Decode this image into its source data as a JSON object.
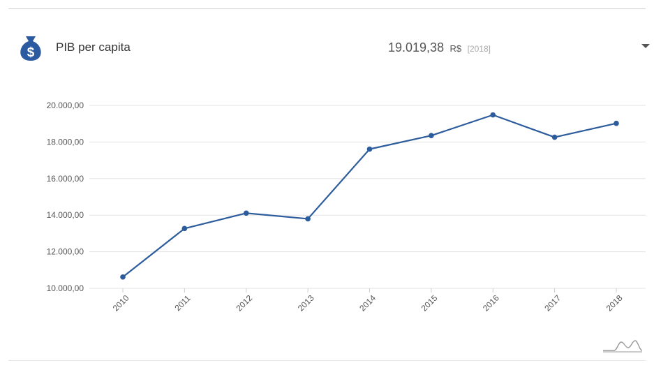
{
  "header": {
    "title": "PIB per capita",
    "value": "19.019,38",
    "unit": "R$",
    "year": "[2018]",
    "icon": "money-bag-icon"
  },
  "colors": {
    "accent": "#2c5c9c",
    "grid": "#e3e3e3",
    "text": "#555555"
  },
  "chart_data": {
    "type": "line",
    "title": "",
    "xlabel": "",
    "ylabel": "",
    "categories": [
      "2010",
      "2011",
      "2012",
      "2013",
      "2014",
      "2015",
      "2016",
      "2017",
      "2018"
    ],
    "series": [
      {
        "values": [
          10620,
          13270,
          14110,
          13800,
          17610,
          18350,
          19480,
          18260,
          19019.38
        ]
      }
    ],
    "ylim": [
      10000,
      20000
    ],
    "yticks": [
      "10.000,00",
      "12.000,00",
      "14.000,00",
      "16.000,00",
      "18.000,00",
      "20.000,00"
    ],
    "grid": true,
    "legend": "none"
  }
}
